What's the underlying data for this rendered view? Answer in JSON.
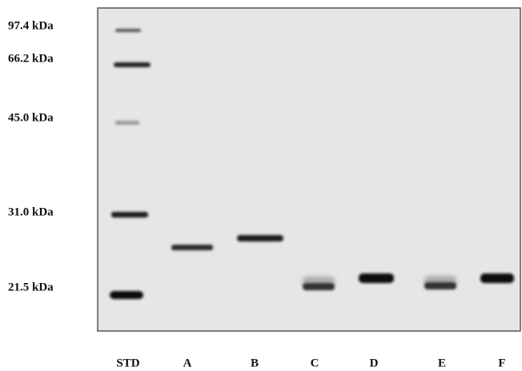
{
  "markers": [
    "97.4 kDa",
    "66.2 kDa",
    "45.0 kDa",
    "31.0 kDa",
    "21.5 kDa"
  ],
  "lanes": [
    "STD",
    "A",
    "B",
    "C",
    "D",
    "E",
    "F"
  ]
}
